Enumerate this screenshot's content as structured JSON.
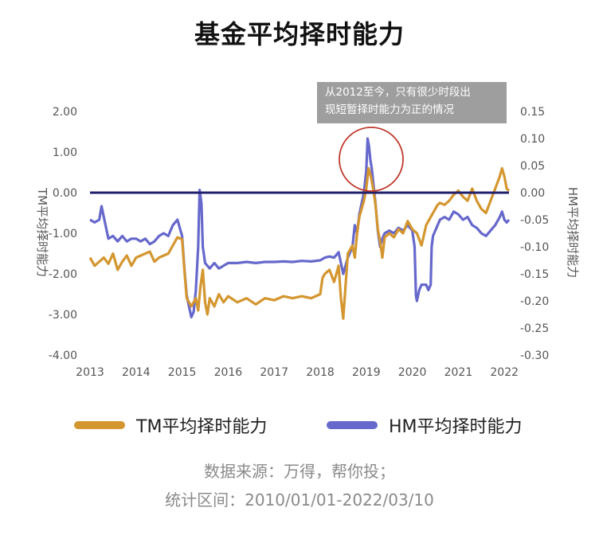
{
  "title": "基金平均择时能力",
  "annotation": {
    "line1": "从2012至今，只有很少时段出",
    "line2": "现短暂择时能力为正的情况"
  },
  "legend": {
    "tm": "TM平均择时能力",
    "hm": "HM平均择时能力"
  },
  "source": {
    "line1": "数据来源：万得，帮你投；",
    "line2": "统计区间：2010/01/01-2022/03/10"
  },
  "colors": {
    "tm": "#D4962F",
    "hm": "#6668CC",
    "zero_line": "#1F1F6B",
    "circle": "#C0392B"
  },
  "chart_data": {
    "type": "line",
    "x_tick_labels": [
      "2013",
      "2014",
      "2015",
      "2016",
      "2017",
      "2018",
      "2019",
      "2020",
      "2021",
      "2022"
    ],
    "left_axis": {
      "label": "TM平均择时能力",
      "ylim": [
        -4.0,
        2.0
      ],
      "tick_labels": [
        "2.00",
        "1.00",
        "0.00",
        "-1.00",
        "-2.00",
        "-3.00",
        "-4.00"
      ]
    },
    "right_axis": {
      "label": "HM平均择时能力",
      "ylim": [
        -0.3,
        0.15
      ],
      "tick_labels": [
        "0.15",
        "0.10",
        "0.05",
        "0.00",
        "-0.05",
        "-0.10",
        "-0.15",
        "-0.20",
        "-0.25",
        "-0.30"
      ]
    },
    "xlim": [
      2013.0,
      2022.1
    ],
    "series": [
      {
        "name": "TM平均择时能力",
        "axis": "left",
        "points": [
          [
            2013.0,
            -1.6
          ],
          [
            2013.1,
            -1.8
          ],
          [
            2013.2,
            -1.7
          ],
          [
            2013.3,
            -1.6
          ],
          [
            2013.4,
            -1.75
          ],
          [
            2013.5,
            -1.5
          ],
          [
            2013.6,
            -1.9
          ],
          [
            2013.7,
            -1.7
          ],
          [
            2013.8,
            -1.55
          ],
          [
            2013.9,
            -1.8
          ],
          [
            2014.0,
            -1.6
          ],
          [
            2014.2,
            -1.5
          ],
          [
            2014.3,
            -1.45
          ],
          [
            2014.4,
            -1.7
          ],
          [
            2014.5,
            -1.6
          ],
          [
            2014.6,
            -1.55
          ],
          [
            2014.7,
            -1.5
          ],
          [
            2014.8,
            -1.3
          ],
          [
            2014.9,
            -1.1
          ],
          [
            2015.0,
            -1.15
          ],
          [
            2015.05,
            -1.9
          ],
          [
            2015.1,
            -2.6
          ],
          [
            2015.2,
            -2.8
          ],
          [
            2015.3,
            -2.6
          ],
          [
            2015.35,
            -2.9
          ],
          [
            2015.4,
            -2.3
          ],
          [
            2015.45,
            -1.9
          ],
          [
            2015.5,
            -2.7
          ],
          [
            2015.55,
            -3.0
          ],
          [
            2015.6,
            -2.6
          ],
          [
            2015.7,
            -2.8
          ],
          [
            2015.8,
            -2.5
          ],
          [
            2015.9,
            -2.7
          ],
          [
            2016.0,
            -2.55
          ],
          [
            2016.2,
            -2.7
          ],
          [
            2016.4,
            -2.6
          ],
          [
            2016.6,
            -2.75
          ],
          [
            2016.8,
            -2.6
          ],
          [
            2017.0,
            -2.65
          ],
          [
            2017.2,
            -2.55
          ],
          [
            2017.4,
            -2.6
          ],
          [
            2017.6,
            -2.55
          ],
          [
            2017.8,
            -2.6
          ],
          [
            2018.0,
            -2.5
          ],
          [
            2018.05,
            -2.1
          ],
          [
            2018.1,
            -2.0
          ],
          [
            2018.2,
            -1.9
          ],
          [
            2018.3,
            -2.2
          ],
          [
            2018.4,
            -1.8
          ],
          [
            2018.45,
            -2.6
          ],
          [
            2018.5,
            -3.1
          ],
          [
            2018.55,
            -2.3
          ],
          [
            2018.6,
            -1.5
          ],
          [
            2018.7,
            -1.3
          ],
          [
            2018.75,
            -1.6
          ],
          [
            2018.8,
            -1.0
          ],
          [
            2018.85,
            -0.6
          ],
          [
            2018.9,
            -0.4
          ],
          [
            2018.95,
            -0.2
          ],
          [
            2019.0,
            0.1
          ],
          [
            2019.05,
            0.6
          ],
          [
            2019.1,
            0.4
          ],
          [
            2019.15,
            0.1
          ],
          [
            2019.2,
            -0.3
          ],
          [
            2019.25,
            -0.9
          ],
          [
            2019.3,
            -1.2
          ],
          [
            2019.35,
            -1.6
          ],
          [
            2019.4,
            -1.1
          ],
          [
            2019.5,
            -1.0
          ],
          [
            2019.6,
            -1.1
          ],
          [
            2019.7,
            -0.9
          ],
          [
            2019.8,
            -1.0
          ],
          [
            2019.9,
            -0.7
          ],
          [
            2020.0,
            -0.9
          ],
          [
            2020.1,
            -1.0
          ],
          [
            2020.2,
            -1.3
          ],
          [
            2020.3,
            -0.8
          ],
          [
            2020.4,
            -0.6
          ],
          [
            2020.5,
            -0.4
          ],
          [
            2020.55,
            -0.3
          ],
          [
            2020.6,
            -0.25
          ],
          [
            2020.7,
            -0.3
          ],
          [
            2020.8,
            -0.2
          ],
          [
            2020.9,
            -0.05
          ],
          [
            2021.0,
            0.05
          ],
          [
            2021.1,
            -0.1
          ],
          [
            2021.2,
            -0.2
          ],
          [
            2021.3,
            0.1
          ],
          [
            2021.4,
            -0.2
          ],
          [
            2021.5,
            -0.4
          ],
          [
            2021.6,
            -0.5
          ],
          [
            2021.7,
            -0.2
          ],
          [
            2021.8,
            0.1
          ],
          [
            2021.9,
            0.4
          ],
          [
            2021.95,
            0.6
          ],
          [
            2022.0,
            0.4
          ],
          [
            2022.05,
            0.1
          ],
          [
            2022.1,
            0.05
          ]
        ]
      },
      {
        "name": "HM平均择时能力",
        "axis": "right",
        "points": [
          [
            2013.0,
            -0.05
          ],
          [
            2013.1,
            -0.055
          ],
          [
            2013.2,
            -0.05
          ],
          [
            2013.25,
            -0.025
          ],
          [
            2013.3,
            -0.045
          ],
          [
            2013.4,
            -0.085
          ],
          [
            2013.5,
            -0.08
          ],
          [
            2013.6,
            -0.09
          ],
          [
            2013.7,
            -0.08
          ],
          [
            2013.8,
            -0.09
          ],
          [
            2013.9,
            -0.085
          ],
          [
            2014.0,
            -0.085
          ],
          [
            2014.1,
            -0.09
          ],
          [
            2014.2,
            -0.085
          ],
          [
            2014.3,
            -0.095
          ],
          [
            2014.4,
            -0.09
          ],
          [
            2014.5,
            -0.08
          ],
          [
            2014.6,
            -0.075
          ],
          [
            2014.7,
            -0.08
          ],
          [
            2014.8,
            -0.06
          ],
          [
            2014.9,
            -0.05
          ],
          [
            2015.0,
            -0.08
          ],
          [
            2015.05,
            -0.14
          ],
          [
            2015.1,
            -0.19
          ],
          [
            2015.15,
            -0.21
          ],
          [
            2015.2,
            -0.23
          ],
          [
            2015.25,
            -0.22
          ],
          [
            2015.3,
            -0.18
          ],
          [
            2015.35,
            -0.1
          ],
          [
            2015.38,
            0.005
          ],
          [
            2015.42,
            -0.02
          ],
          [
            2015.45,
            -0.1
          ],
          [
            2015.5,
            -0.13
          ],
          [
            2015.6,
            -0.14
          ],
          [
            2015.7,
            -0.13
          ],
          [
            2015.8,
            -0.14
          ],
          [
            2016.0,
            -0.13
          ],
          [
            2016.2,
            -0.13
          ],
          [
            2016.4,
            -0.128
          ],
          [
            2016.6,
            -0.13
          ],
          [
            2016.8,
            -0.128
          ],
          [
            2017.0,
            -0.128
          ],
          [
            2017.2,
            -0.127
          ],
          [
            2017.4,
            -0.128
          ],
          [
            2017.6,
            -0.126
          ],
          [
            2017.8,
            -0.127
          ],
          [
            2018.0,
            -0.125
          ],
          [
            2018.1,
            -0.12
          ],
          [
            2018.2,
            -0.118
          ],
          [
            2018.3,
            -0.12
          ],
          [
            2018.4,
            -0.11
          ],
          [
            2018.45,
            -0.13
          ],
          [
            2018.5,
            -0.15
          ],
          [
            2018.6,
            -0.12
          ],
          [
            2018.7,
            -0.1
          ],
          [
            2018.75,
            -0.06
          ],
          [
            2018.8,
            -0.075
          ],
          [
            2018.85,
            -0.04
          ],
          [
            2018.9,
            -0.02
          ],
          [
            2018.95,
            0.0
          ],
          [
            2019.0,
            0.04
          ],
          [
            2019.03,
            0.1
          ],
          [
            2019.06,
            0.085
          ],
          [
            2019.09,
            0.06
          ],
          [
            2019.12,
            0.045
          ],
          [
            2019.15,
            0.02
          ],
          [
            2019.2,
            -0.02
          ],
          [
            2019.25,
            -0.07
          ],
          [
            2019.3,
            -0.1
          ],
          [
            2019.35,
            -0.085
          ],
          [
            2019.4,
            -0.075
          ],
          [
            2019.5,
            -0.07
          ],
          [
            2019.6,
            -0.075
          ],
          [
            2019.7,
            -0.065
          ],
          [
            2019.8,
            -0.07
          ],
          [
            2019.9,
            -0.06
          ],
          [
            2020.0,
            -0.07
          ],
          [
            2020.05,
            -0.1
          ],
          [
            2020.08,
            -0.19
          ],
          [
            2020.1,
            -0.2
          ],
          [
            2020.15,
            -0.18
          ],
          [
            2020.2,
            -0.17
          ],
          [
            2020.3,
            -0.17
          ],
          [
            2020.35,
            -0.18
          ],
          [
            2020.4,
            -0.17
          ],
          [
            2020.42,
            -0.1
          ],
          [
            2020.45,
            -0.08
          ],
          [
            2020.5,
            -0.07
          ],
          [
            2020.6,
            -0.05
          ],
          [
            2020.7,
            -0.045
          ],
          [
            2020.8,
            -0.05
          ],
          [
            2020.9,
            -0.035
          ],
          [
            2021.0,
            -0.04
          ],
          [
            2021.1,
            -0.05
          ],
          [
            2021.2,
            -0.045
          ],
          [
            2021.3,
            -0.06
          ],
          [
            2021.4,
            -0.065
          ],
          [
            2021.5,
            -0.075
          ],
          [
            2021.6,
            -0.08
          ],
          [
            2021.7,
            -0.07
          ],
          [
            2021.8,
            -0.06
          ],
          [
            2021.9,
            -0.045
          ],
          [
            2021.95,
            -0.035
          ],
          [
            2022.0,
            -0.05
          ],
          [
            2022.05,
            -0.055
          ],
          [
            2022.1,
            -0.05
          ]
        ]
      }
    ]
  }
}
